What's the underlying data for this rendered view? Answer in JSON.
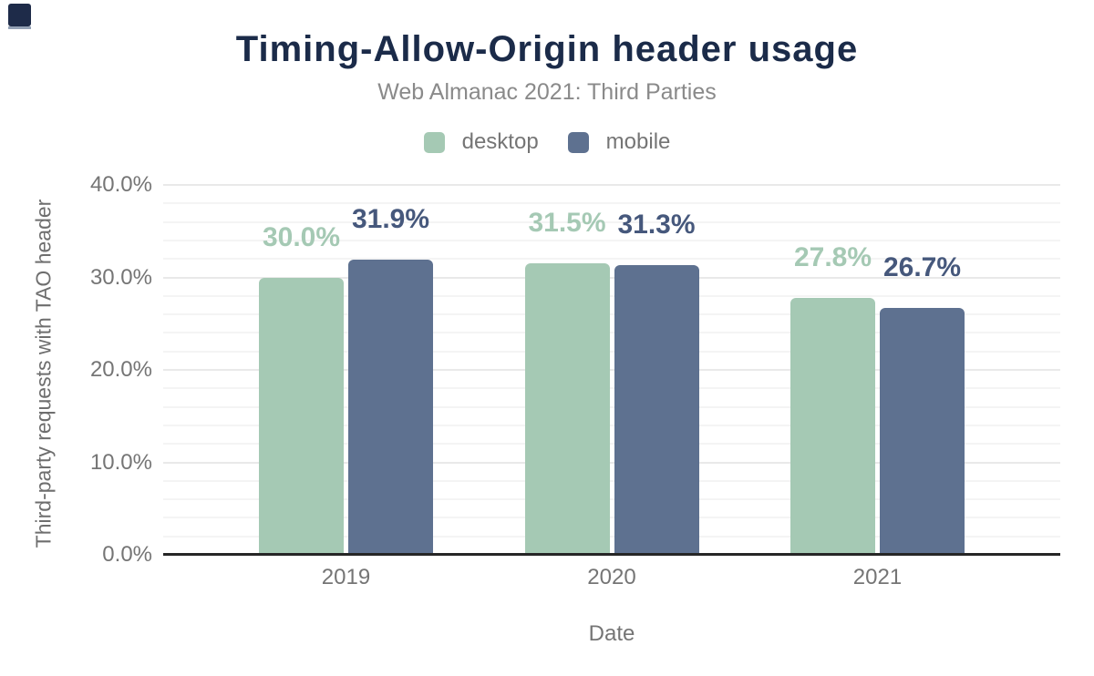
{
  "chart_data": {
    "type": "bar",
    "title": "Timing-Allow-Origin header usage",
    "subtitle": "Web Almanac 2021: Third Parties",
    "xlabel": "Date",
    "ylabel": "Third-party requests with TAO header",
    "categories": [
      "2019",
      "2020",
      "2021"
    ],
    "series": [
      {
        "name": "desktop",
        "color": "#a5c9b4",
        "label_color": "#a5c9b4",
        "values": [
          30.0,
          31.5,
          27.8
        ],
        "value_labels": [
          "30.0%",
          "31.5%",
          "27.8%"
        ]
      },
      {
        "name": "mobile",
        "color": "#5e7190",
        "label_color": "#46587c",
        "values": [
          31.9,
          31.3,
          26.7
        ],
        "value_labels": [
          "31.9%",
          "31.3%",
          "26.7%"
        ]
      }
    ],
    "ylim": [
      0,
      40
    ],
    "ytick_values": [
      0,
      10,
      20,
      30,
      40
    ],
    "ytick_labels": [
      "0.0%",
      "10.0%",
      "20.0%",
      "30.0%",
      "40.0%"
    ],
    "grid": "horizontal; minor lines every 2%, major lines every 10%",
    "legend_position": "top-center"
  },
  "colors": {
    "title": "#1b2b49",
    "subtitle": "#8a8a8a",
    "axis_text": "#757575",
    "axis_line": "#262626",
    "gridline_minor": "#f4f4f4",
    "gridline_major": "#e9e9e9",
    "corner_mark": "#1e2b49"
  }
}
